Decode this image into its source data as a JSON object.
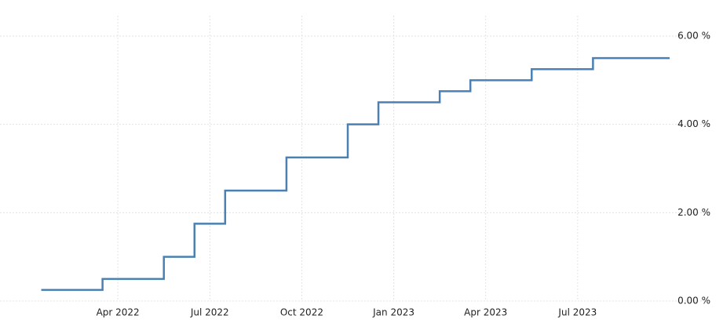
{
  "chart_data": {
    "type": "step",
    "x": [
      "2022-01",
      "2022-03",
      "2022-05",
      "2022-06",
      "2022-07",
      "2022-09",
      "2022-11",
      "2022-12",
      "2023-02",
      "2023-03",
      "2023-05",
      "2023-07"
    ],
    "values": [
      0.25,
      0.5,
      1.0,
      1.75,
      2.5,
      3.25,
      4.0,
      4.5,
      4.75,
      5.0,
      5.25,
      5.5
    ],
    "color": "#4a80b2",
    "xlim": [
      "2022-01",
      "2023-09"
    ],
    "xticks": [
      {
        "value": "2022-04",
        "label": "Apr 2022"
      },
      {
        "value": "2022-07",
        "label": "Jul 2022"
      },
      {
        "value": "2022-10",
        "label": "Oct 2022"
      },
      {
        "value": "2023-01",
        "label": "Jan 2023"
      },
      {
        "value": "2023-04",
        "label": "Apr 2023"
      },
      {
        "value": "2023-07",
        "label": "Jul 2023"
      }
    ],
    "ylim": [
      0,
      6
    ],
    "yticks": [
      {
        "value": 0,
        "label": "0.00 %"
      },
      {
        "value": 2,
        "label": "2.00 %"
      },
      {
        "value": 4,
        "label": "4.00 %"
      },
      {
        "value": 6,
        "label": "6.00 %"
      }
    ],
    "grid": true
  }
}
